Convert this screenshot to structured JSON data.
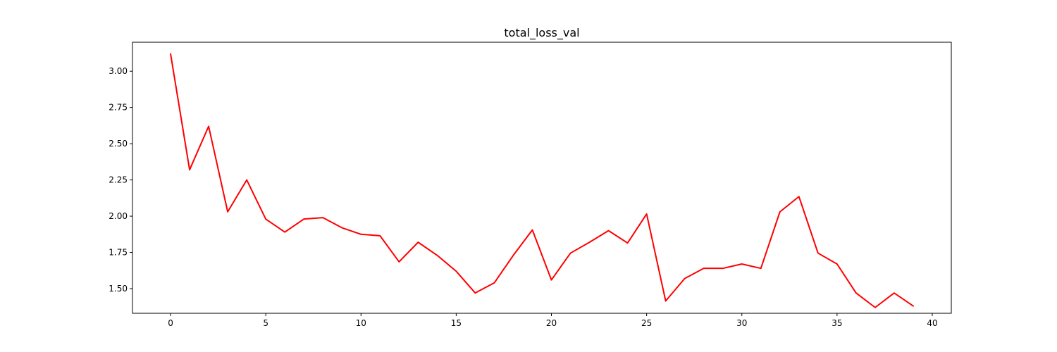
{
  "chart_data": {
    "type": "line",
    "title": "total_loss_val",
    "xlabel": "",
    "ylabel": "",
    "xlim": [
      -2,
      41
    ],
    "ylim": [
      1.33,
      3.2
    ],
    "xticks": [
      0,
      5,
      10,
      15,
      20,
      25,
      30,
      35,
      40
    ],
    "yticks": [
      1.5,
      1.75,
      2.0,
      2.25,
      2.5,
      2.75,
      3.0
    ],
    "grid": false,
    "series": [
      {
        "color": "#ff0000",
        "x": [
          0,
          1,
          2,
          3,
          4,
          5,
          6,
          7,
          8,
          9,
          10,
          11,
          12,
          13,
          14,
          15,
          16,
          17,
          18,
          19,
          20,
          21,
          22,
          23,
          24,
          25,
          26,
          27,
          28,
          29,
          30,
          31,
          32,
          33,
          34,
          35,
          36,
          37,
          38,
          39
        ],
        "y": [
          3.12,
          2.32,
          2.62,
          2.03,
          2.25,
          1.98,
          1.89,
          1.98,
          1.99,
          1.92,
          1.875,
          1.865,
          1.685,
          1.82,
          1.73,
          1.62,
          1.47,
          1.54,
          1.73,
          1.905,
          1.56,
          1.745,
          1.82,
          1.9,
          1.815,
          2.015,
          1.415,
          1.57,
          1.64,
          1.64,
          1.67,
          1.64,
          2.03,
          2.135,
          1.745,
          1.67,
          1.47,
          1.37,
          1.47,
          1.38
        ]
      }
    ]
  }
}
